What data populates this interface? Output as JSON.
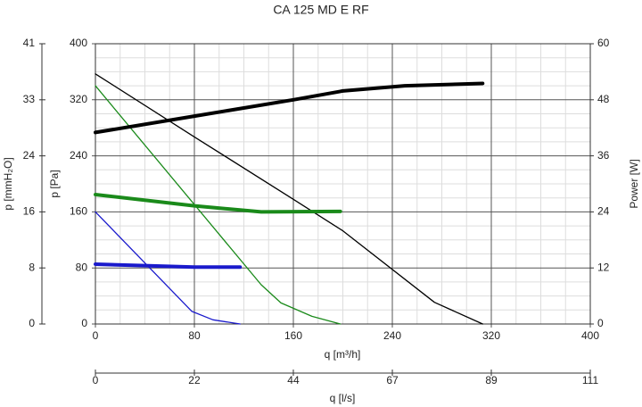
{
  "chart_data": {
    "type": "line",
    "title": "CA 125 MD E RF",
    "xlabel": "q [m³/h]",
    "xlim": [
      0,
      400
    ],
    "xticks": [
      0,
      80,
      160,
      240,
      320,
      400
    ],
    "x2label": "q [l/s]",
    "x2lim": [
      0,
      111.11
    ],
    "x2ticks": [
      0,
      {
        "value": 22.22,
        "label": "22"
      },
      {
        "value": 44.44,
        "label": "44"
      },
      {
        "value": 66.67,
        "label": "67"
      },
      {
        "value": 88.89,
        "label": "89"
      },
      {
        "value": 111.11,
        "label": "111"
      }
    ],
    "ylabel": "p [Pa]",
    "ylim": [
      0,
      400
    ],
    "yticks": [
      0,
      80,
      160,
      240,
      320,
      400
    ],
    "y3label": "p [mmH₂O]",
    "y3lim": [
      0,
      40.79
    ],
    "y3ticks": [
      0,
      {
        "value": 8.16,
        "label": "8"
      },
      {
        "value": 16.32,
        "label": "16"
      },
      {
        "value": 24.47,
        "label": "24"
      },
      {
        "value": 32.63,
        "label": "33"
      },
      {
        "value": 40.79,
        "label": "41"
      }
    ],
    "y2label": "Power [W]",
    "y2lim": [
      0,
      60
    ],
    "y2ticks": [
      0,
      12,
      24,
      36,
      48,
      60
    ],
    "grid": true,
    "series": [
      {
        "color": "#000000",
        "axis": "y",
        "line_width": 1.3,
        "x": [
          0,
          80,
          160,
          200,
          274,
          313
        ],
        "values": [
          357,
          267,
          178,
          133,
          31,
          0
        ]
      },
      {
        "color": "#1a8a1a",
        "axis": "y",
        "line_width": 1.3,
        "x": [
          0,
          134,
          150,
          175,
          198
        ],
        "values": [
          340,
          56,
          30,
          11,
          0
        ]
      },
      {
        "color": "#1a1acc",
        "axis": "y",
        "line_width": 1.3,
        "x": [
          0,
          78,
          95,
          117
        ],
        "values": [
          160,
          18,
          6,
          0
        ]
      },
      {
        "color": "#000000",
        "axis": "y2",
        "line_width": 4,
        "x": [
          0,
          80,
          160,
          200,
          250,
          313
        ],
        "values": [
          41,
          44.5,
          48,
          49.9,
          51,
          51.5
        ]
      },
      {
        "color": "#1a8a1a",
        "axis": "y2",
        "line_width": 4,
        "x": [
          0,
          80,
          134,
          198
        ],
        "values": [
          27.7,
          25.3,
          24,
          24.1
        ]
      },
      {
        "color": "#1a1acc",
        "axis": "y2",
        "line_width": 4,
        "x": [
          0,
          40,
          80,
          117
        ],
        "values": [
          12.8,
          12.5,
          12.2,
          12.2
        ]
      }
    ]
  }
}
